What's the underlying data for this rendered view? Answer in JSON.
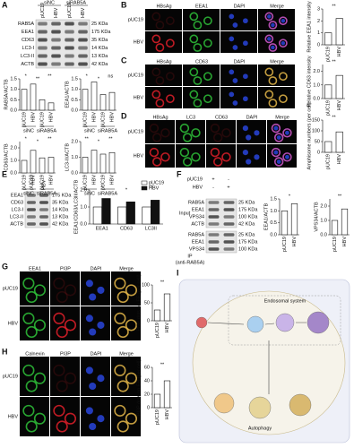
{
  "panels": {
    "A": {
      "label": "A",
      "conditions": [
        "siNC",
        "siRAB5A"
      ],
      "lanes": [
        "pUC19",
        "HBV",
        "pUC19",
        "HBV"
      ],
      "rows": [
        "RAB5A",
        "EEA1",
        "CD63",
        "LC3-I",
        "LC3-II",
        "ACTB"
      ],
      "sizes": [
        "25 KDa",
        "175 KDa",
        "35 KDa",
        "14 KDa",
        "13 KDa",
        "42 KDa"
      ]
    },
    "B": {
      "label": "B",
      "columns": [
        "HBsAg",
        "EEA1",
        "DAPI",
        "Merge"
      ],
      "rows": [
        "pUC19",
        "HBV"
      ]
    },
    "C": {
      "label": "C",
      "columns": [
        "HBsAg",
        "CD63",
        "DAPI",
        "Merge"
      ],
      "rows": [
        "pUC19",
        "HBV"
      ]
    },
    "D": {
      "label": "D",
      "columns": [
        "HBsAg",
        "LC3",
        "CD63",
        "DAPI",
        "Merge"
      ],
      "rows": [
        "pUC19",
        "HBV"
      ]
    },
    "E": {
      "label": "E",
      "lanes": [
        "pUC19",
        "HBV"
      ],
      "rows": [
        "EEA1",
        "CD63",
        "LC3-I",
        "LC3-II",
        "ACTB"
      ],
      "sizes": [
        "175 KDa",
        "35 KDa",
        "14 KDa",
        "13 KDa",
        "42 KDa"
      ]
    },
    "F": {
      "label": "F",
      "conditions": [
        "pUC19",
        "HBV"
      ],
      "signs": [
        [
          "+",
          "-"
        ],
        [
          "-",
          "+"
        ]
      ],
      "input": "Input",
      "ip": "IP",
      "ip_antibody": "(anti-RAB5A)",
      "input_rows": [
        "RAB5A",
        "EEA1",
        "VPS34",
        "ACTB"
      ],
      "input_sizes": [
        "25 KDa",
        "175 KDa",
        "100 KDa",
        "42 KDa"
      ],
      "ip_rows": [
        "RAB5A",
        "EEA1",
        "VPS34"
      ],
      "ip_sizes": [
        "25 KDa",
        "175 KDa",
        "100 KDa"
      ]
    },
    "G": {
      "label": "G",
      "columns": [
        "EEA1",
        "PI3P",
        "DAPI",
        "Merge"
      ],
      "rows": [
        "pUC19",
        "HBV"
      ]
    },
    "H": {
      "label": "H",
      "columns": [
        "Calnexin",
        "PI3P",
        "DAPI",
        "Merge"
      ],
      "rows": [
        "pUC19",
        "HBV"
      ]
    },
    "I": {
      "label": "I",
      "texts": [
        "Endosomal system",
        "Autophagy"
      ]
    }
  },
  "chart_data": [
    {
      "type": "bar",
      "y_label": "RAB5A/ACTB",
      "categories": [
        "pUC19",
        "HBV",
        "pUC19",
        "HBV"
      ],
      "groups": [
        "siNC",
        "siRAB5A"
      ],
      "values": [
        1.0,
        1.25,
        0.5,
        0.35
      ],
      "color": "#ffffff",
      "ylim": [
        0,
        1.5
      ],
      "yticks": [
        {
          "value": 0,
          "label": "0.0"
        },
        {
          "value": 0.5,
          "label": "0.5"
        },
        {
          "value": 1,
          "label": "1.0"
        },
        {
          "value": 1.5,
          "label": "1.5"
        }
      ],
      "stars": [
        "*",
        "**",
        "**"
      ]
    },
    {
      "type": "bar",
      "y_label": "EEA1/ACTB",
      "categories": [
        "pUC19",
        "HBV",
        "pUC19",
        "HBV"
      ],
      "groups": [
        "siNC",
        "siRAB5A"
      ],
      "values": [
        1.0,
        1.35,
        0.75,
        0.85
      ],
      "color": "#ffffff",
      "ylim": [
        0,
        1.5
      ],
      "yticks": [
        {
          "value": 0,
          "label": "0.0"
        },
        {
          "value": 0.5,
          "label": "0.5"
        },
        {
          "value": 1,
          "label": "1.0"
        },
        {
          "value": 1.5,
          "label": "1.5"
        }
      ],
      "stars": [
        "*",
        "*",
        "ns"
      ]
    },
    {
      "type": "bar",
      "y_label": "CD63/ACTB",
      "categories": [
        "pUC19",
        "HBV",
        "pUC19",
        "HBV"
      ],
      "groups": [
        "siNC",
        "siRAB5A"
      ],
      "values": [
        1.0,
        1.8,
        1.2,
        1.25
      ],
      "color": "#ffffff",
      "ylim": [
        0,
        2.5
      ],
      "yticks": [
        {
          "value": 0,
          "label": "0.0"
        },
        {
          "value": 1,
          "label": "1.0"
        },
        {
          "value": 2,
          "label": "2.0"
        }
      ],
      "stars": [
        "*",
        "*",
        "**"
      ]
    },
    {
      "type": "bar",
      "y_label": "LC3-II/ACTB",
      "categories": [
        "pUC19",
        "HBV",
        "pUC19",
        "HBV"
      ],
      "groups": [
        "siNC",
        "siRAB5A"
      ],
      "values": [
        1.0,
        1.45,
        1.2,
        1.3
      ],
      "color": "#ffffff",
      "ylim": [
        0,
        2
      ],
      "yticks": [
        {
          "value": 0,
          "label": "0.0"
        },
        {
          "value": 1,
          "label": "1.0"
        },
        {
          "value": 2,
          "label": "2.0"
        }
      ],
      "stars": [
        "**",
        "*",
        "**"
      ]
    },
    {
      "type": "bar",
      "y_label": "Relative EEA1 intensity",
      "categories": [
        "pUC19",
        "HBV"
      ],
      "values": [
        1.0,
        2.2
      ],
      "color": "#ffffff",
      "ylim": [
        0,
        3
      ],
      "yticks": [
        0,
        1,
        2,
        3
      ],
      "stars": [
        "**"
      ]
    },
    {
      "type": "bar",
      "y_label": "Relative CD63 intensity",
      "categories": [
        "pUC19",
        "HBV"
      ],
      "values": [
        1.0,
        1.7
      ],
      "color": "#ffffff",
      "ylim": [
        0,
        2.5
      ],
      "yticks": [
        {
          "value": 0,
          "label": "0.0"
        },
        {
          "value": 1,
          "label": "1.0"
        },
        {
          "value": 2,
          "label": "2.0"
        }
      ],
      "stars": [
        "**"
      ]
    },
    {
      "type": "bar",
      "y_label": "Amphisome numbers (per cell)",
      "categories": [
        "pUC19",
        "HBV"
      ],
      "values": [
        50,
        95
      ],
      "color": "#ffffff",
      "ylim": [
        0,
        150
      ],
      "yticks": [
        0,
        50,
        100,
        150
      ],
      "stars": [
        "**"
      ]
    },
    {
      "type": "grouped_bar",
      "y_label": "EEA1/CD63/LC3II/ACTB",
      "categories": [
        "EEA1",
        "CD63",
        "LC3II"
      ],
      "series": [
        {
          "name": "pUC19",
          "color": "#ffffff",
          "values": [
            1.0,
            1.0,
            1.0
          ]
        },
        {
          "name": "HBV",
          "color": "#111111",
          "values": [
            1.5,
            1.3,
            1.4
          ]
        }
      ],
      "ylim": [
        0,
        2
      ],
      "yticks": [
        {
          "value": 0,
          "label": "0.0"
        },
        {
          "value": 1,
          "label": "1.0"
        },
        {
          "value": 2,
          "label": "2.0"
        }
      ],
      "stars": [
        "*",
        "*",
        "**"
      ]
    },
    {
      "type": "bar",
      "y_label": "EEA1/ACTB",
      "categories": [
        "pUC19",
        "HBV"
      ],
      "values": [
        1.0,
        1.3
      ],
      "color": "#ffffff",
      "ylim": [
        0,
        1.5
      ],
      "yticks": [
        {
          "value": 0,
          "label": "0.0"
        },
        {
          "value": 0.5,
          "label": "0.5"
        },
        {
          "value": 1,
          "label": "1.0"
        },
        {
          "value": 1.5,
          "label": "1.5"
        }
      ],
      "stars": [
        "*"
      ]
    },
    {
      "type": "bar",
      "y_label": "VPS34/ACTB",
      "categories": [
        "pUC19",
        "HBV"
      ],
      "values": [
        1.0,
        1.8
      ],
      "color": "#ffffff",
      "ylim": [
        0,
        2.5
      ],
      "yticks": [
        {
          "value": 0,
          "label": "0.0"
        },
        {
          "value": 1,
          "label": "1.0"
        },
        {
          "value": 2,
          "label": "2.0"
        }
      ],
      "stars": [
        "**"
      ]
    },
    {
      "type": "bar",
      "y_label": "PI3P dots on EE (per cell)",
      "categories": [
        "pUC19",
        "HBV"
      ],
      "values": [
        30,
        75
      ],
      "color": "#ffffff",
      "ylim": [
        0,
        100
      ],
      "yticks": [
        0,
        50,
        100
      ],
      "stars": [
        "**"
      ]
    },
    {
      "type": "bar",
      "y_label": "PI3P dots on ER (per cell)",
      "categories": [
        "pUC19",
        "HBV"
      ],
      "values": [
        20,
        40
      ],
      "color": "#ffffff",
      "ylim": [
        0,
        60
      ],
      "yticks": [
        0,
        20,
        40,
        60
      ],
      "stars": [
        "**"
      ]
    }
  ]
}
